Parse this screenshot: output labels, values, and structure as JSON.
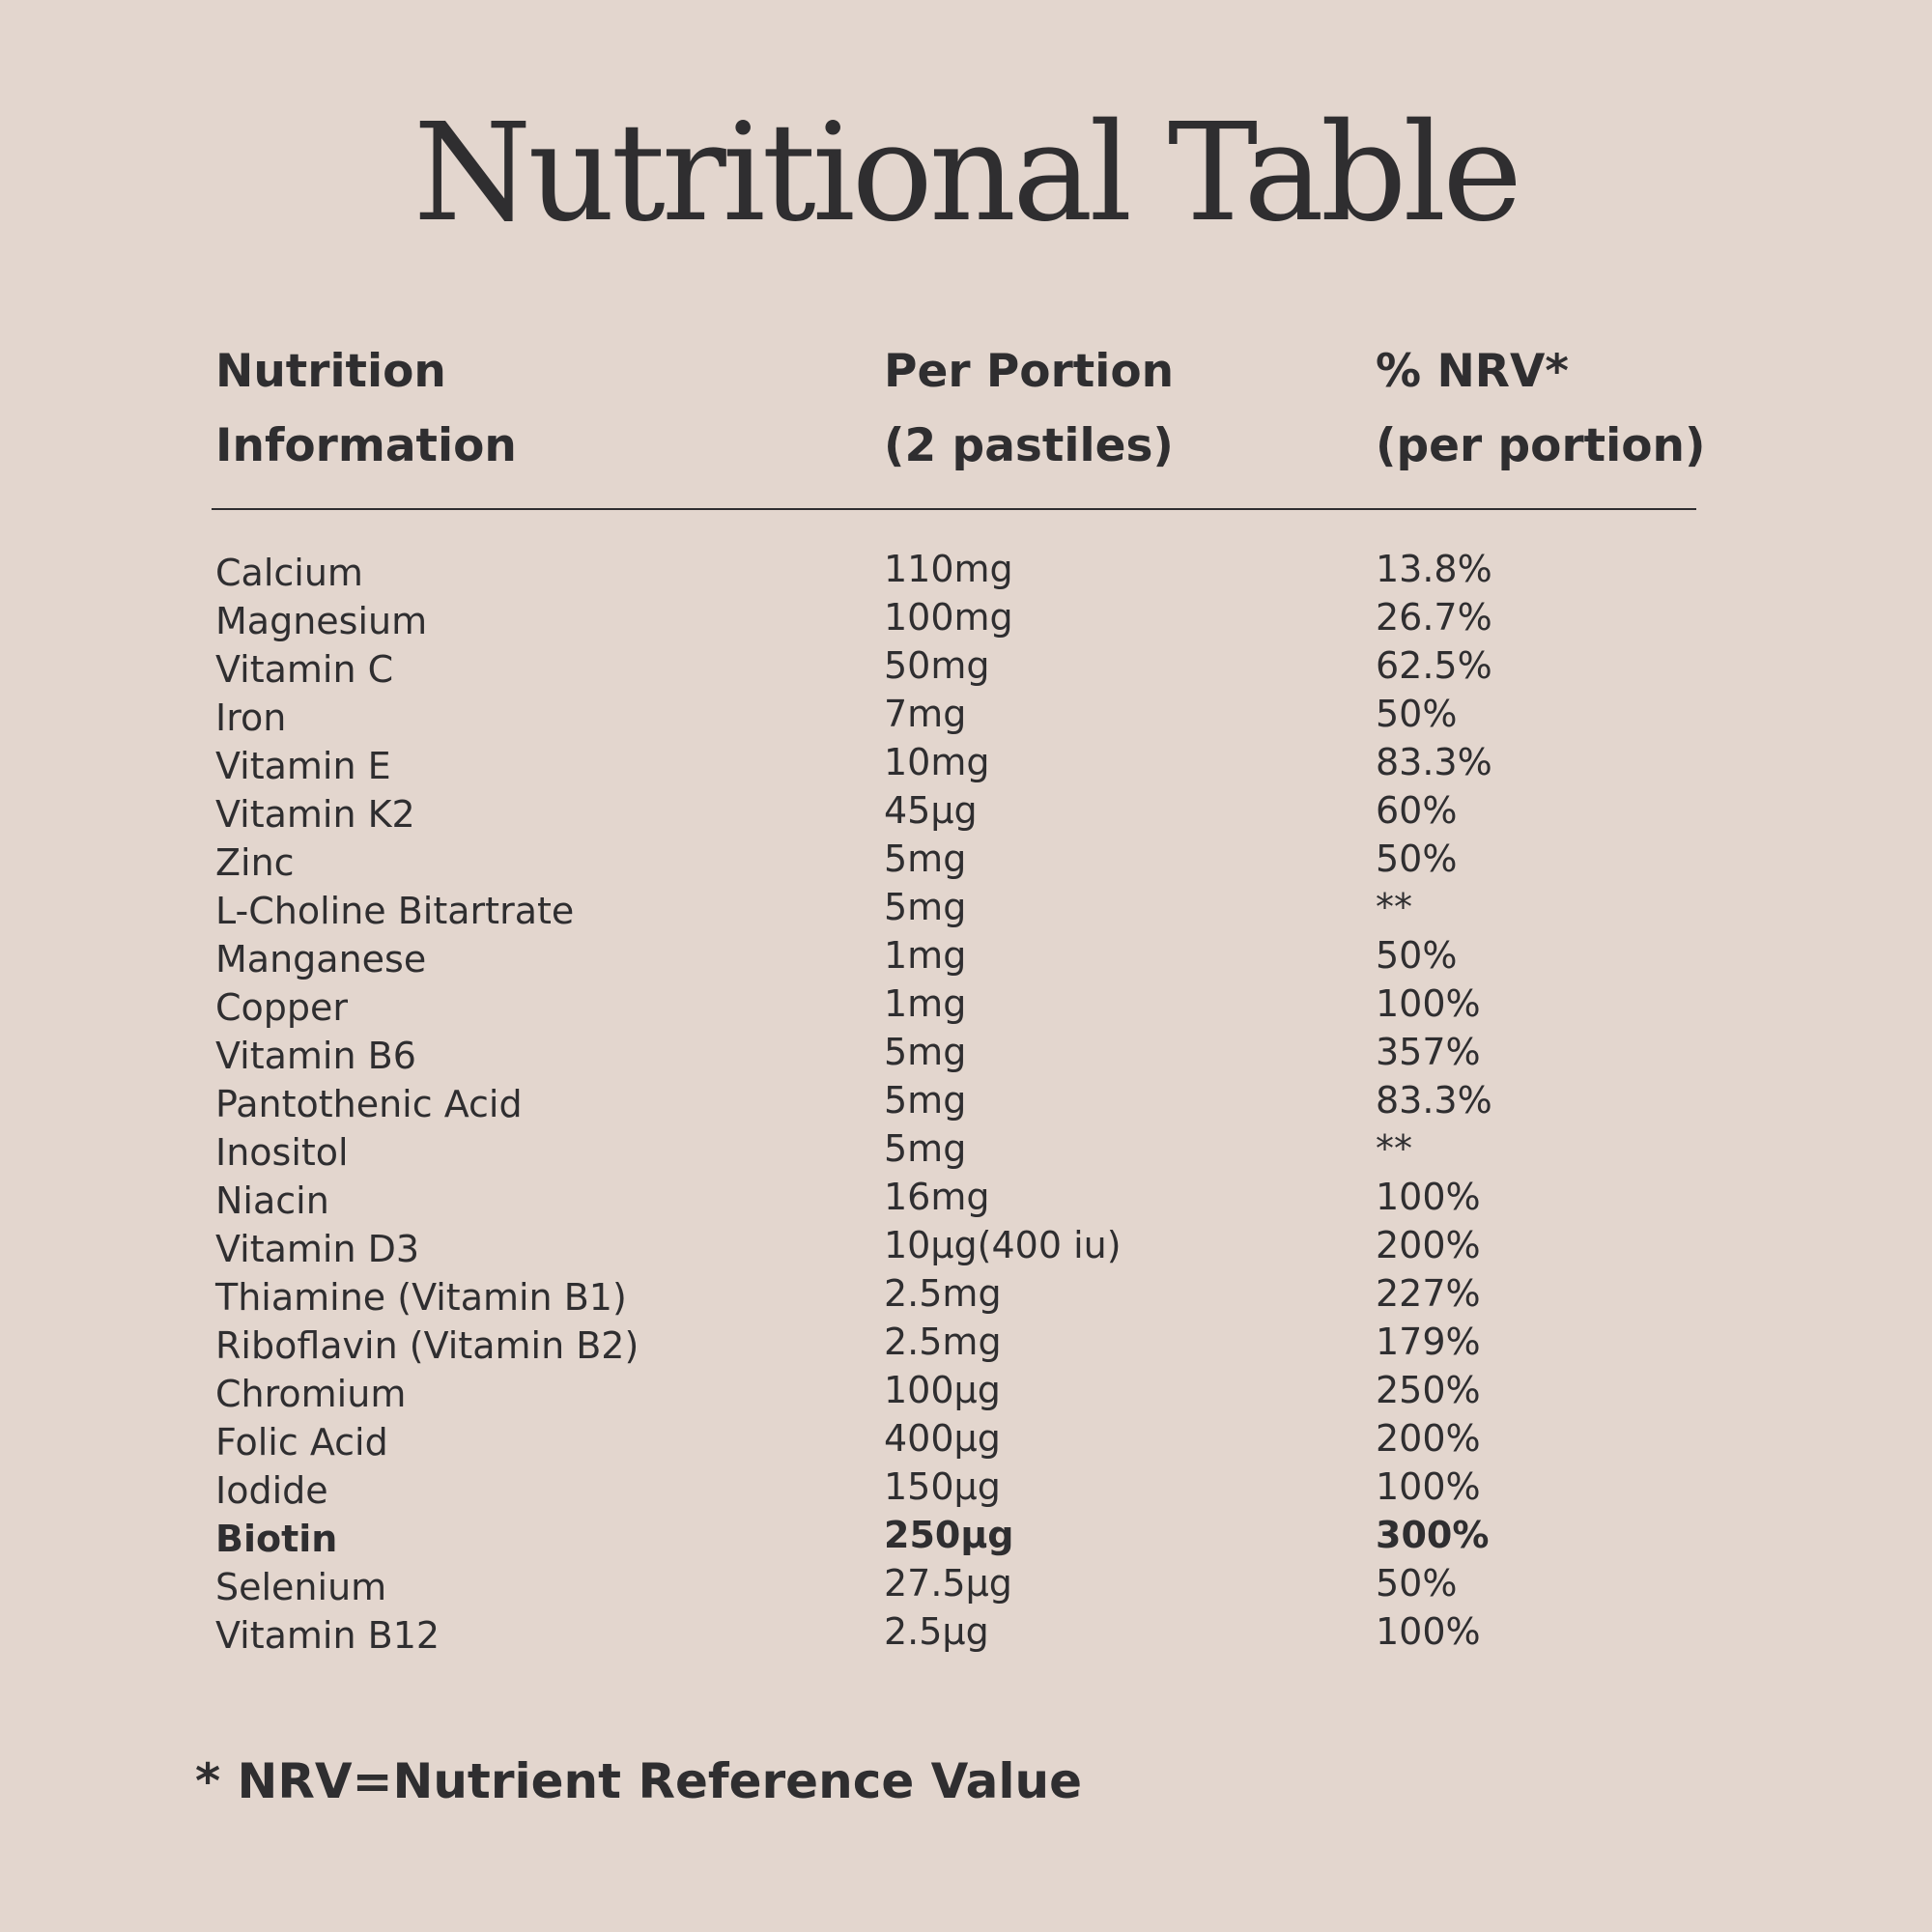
{
  "title": "Nutritional Table",
  "headers": {
    "col1_line1": "Nutrition",
    "col1_line2": "Information",
    "col2_line1": "Per Portion",
    "col2_line2": "(2 pastiles)",
    "col3_line1": "% NRV*",
    "col3_line2": "(per portion)"
  },
  "rows": [
    {
      "name": "Calcium",
      "amount": "110mg",
      "nrv": "13.8%",
      "bold": false
    },
    {
      "name": "Magnesium",
      "amount": "100mg",
      "nrv": "26.7%",
      "bold": false
    },
    {
      "name": "Vitamin C",
      "amount": "50mg",
      "nrv": "62.5%",
      "bold": false
    },
    {
      "name": "Iron",
      "amount": "7mg",
      "nrv": "50%",
      "bold": false
    },
    {
      "name": "Vitamin E",
      "amount": "10mg",
      "nrv": "83.3%",
      "bold": false
    },
    {
      "name": "Vitamin K2",
      "amount": "45µg",
      "nrv": "60%",
      "bold": false
    },
    {
      "name": "Zinc",
      "amount": "5mg",
      "nrv": "50%",
      "bold": false
    },
    {
      "name": "L-Choline Bitartrate",
      "amount": "5mg",
      "nrv": "**",
      "bold": false
    },
    {
      "name": "Manganese",
      "amount": "1mg",
      "nrv": "50%",
      "bold": false
    },
    {
      "name": "Copper",
      "amount": "1mg",
      "nrv": "100%",
      "bold": false
    },
    {
      "name": "Vitamin B6",
      "amount": "5mg",
      "nrv": "357%",
      "bold": false
    },
    {
      "name": "Pantothenic Acid",
      "amount": "5mg",
      "nrv": "83.3%",
      "bold": false
    },
    {
      "name": "Inositol",
      "amount": "5mg",
      "nrv": "**",
      "bold": false
    },
    {
      "name": "Niacin",
      "amount": "16mg",
      "nrv": "100%",
      "bold": false
    },
    {
      "name": "Vitamin D3",
      "amount": "10µg(400 iu)",
      "nrv": "200%",
      "bold": false
    },
    {
      "name": "Thiamine (Vitamin B1)",
      "amount": "2.5mg",
      "nrv": "227%",
      "bold": false
    },
    {
      "name": "Riboflavin (Vitamin B2)",
      "amount": "2.5mg",
      "nrv": "179%",
      "bold": false
    },
    {
      "name": "Chromium",
      "amount": "100µg",
      "nrv": "250%",
      "bold": false
    },
    {
      "name": "Folic Acid",
      "amount": "400µg",
      "nrv": "200%",
      "bold": false
    },
    {
      "name": "Iodide",
      "amount": "150µg",
      "nrv": "100%",
      "bold": false
    },
    {
      "name": "Biotin",
      "amount": "250µg",
      "nrv": "300%",
      "bold": true
    },
    {
      "name": "Selenium",
      "amount": "27.5µg",
      "nrv": "50%",
      "bold": false
    },
    {
      "name": "Vitamin B12",
      "amount": "2.5µg",
      "nrv": "100%",
      "bold": false
    }
  ],
  "footnote": "* NRV=Nutrient Reference Value",
  "colors": {
    "background": "#e3d6ce",
    "text": "#2f2e30"
  }
}
